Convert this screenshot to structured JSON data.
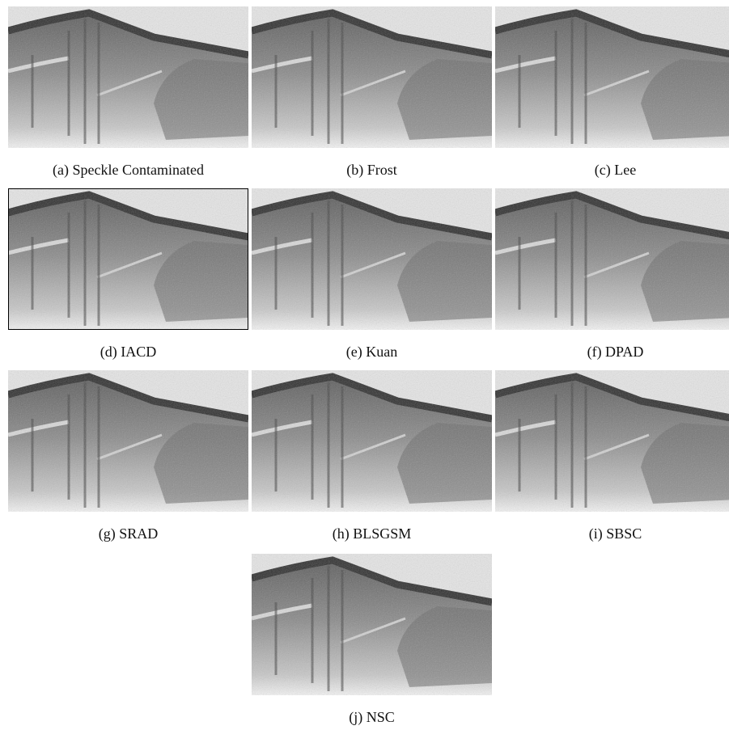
{
  "panels": [
    "(a) Speckle Contaminated",
    "(b) Frost",
    "(c) Lee",
    "(d) IACD",
    "(e) Kuan",
    "(f) DPAD",
    "(g) SRAD",
    "(h) BLSGSM",
    "(i) SBSC",
    "(j) NSC"
  ]
}
